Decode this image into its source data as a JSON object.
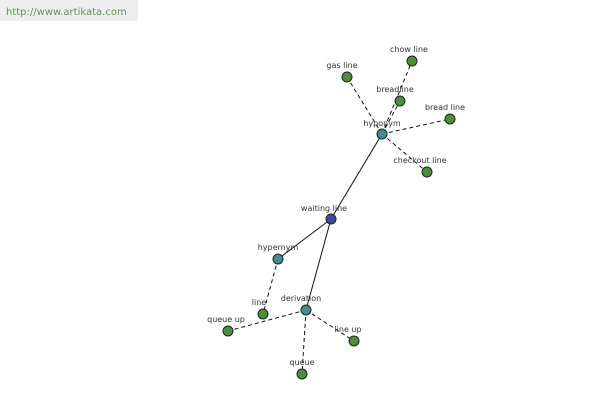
{
  "header": {
    "url": "http://www.artikata.com"
  },
  "nodes": [
    {
      "label": "waiting line"
    },
    {
      "label": "hyponym"
    },
    {
      "label": "hypernym"
    },
    {
      "label": "derivation"
    },
    {
      "label": "gas line"
    },
    {
      "label": "chow line"
    },
    {
      "label": "breadline"
    },
    {
      "label": "bread line"
    },
    {
      "label": "checkout line"
    },
    {
      "label": "line"
    },
    {
      "label": "queue up"
    },
    {
      "label": "line up"
    },
    {
      "label": "queue"
    }
  ]
}
